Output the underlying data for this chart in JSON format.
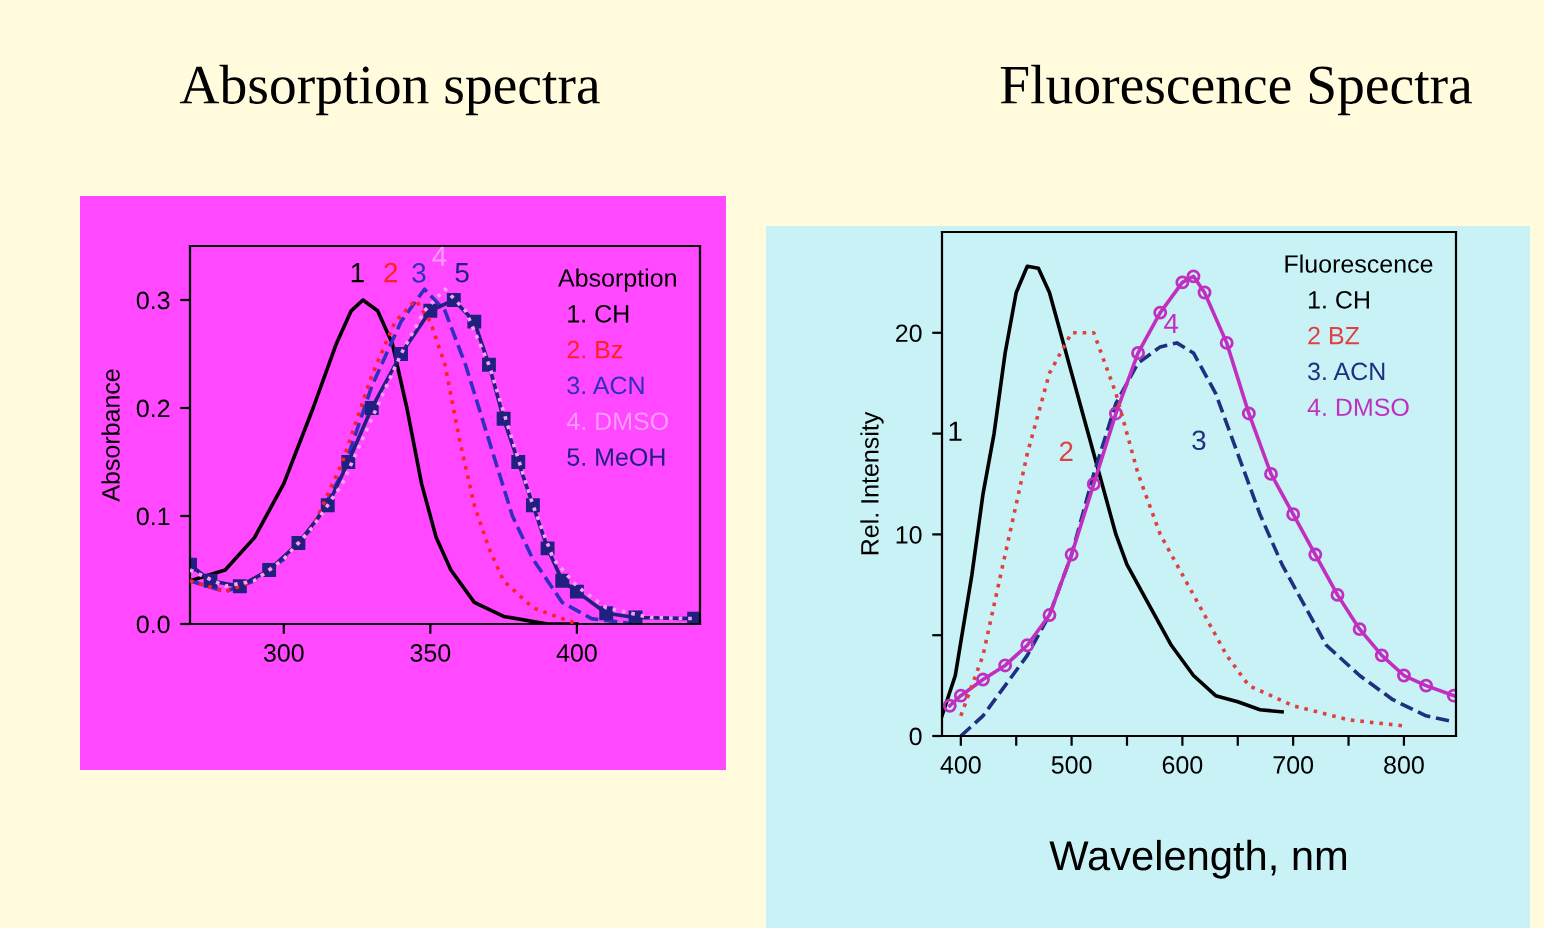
{
  "chart_data": [
    {
      "type": "line",
      "title": "Absorption spectra",
      "ylabel": "Absorbance",
      "legend_title": "Absorption",
      "legend": "top right",
      "grid": false,
      "xlim": [
        268,
        442
      ],
      "xticks": [
        300,
        350,
        400
      ],
      "ylim": [
        0,
        0.35
      ],
      "yticks": [
        {
          "value": 0,
          "label": "0.0"
        },
        {
          "value": 0.1,
          "label": "0.1"
        },
        {
          "value": 0.2,
          "label": "0.2"
        },
        {
          "value": 0.3,
          "label": "0.3"
        }
      ],
      "series": [
        {
          "name": "1. CH",
          "color": "#000000",
          "line_style": "solid",
          "marker": "none",
          "x": [
            268,
            280,
            290,
            300,
            310,
            318,
            323,
            327,
            332,
            337,
            342,
            347,
            352,
            357,
            365,
            375,
            390,
            400
          ],
          "values": [
            0.04,
            0.05,
            0.08,
            0.13,
            0.2,
            0.26,
            0.29,
            0.3,
            0.29,
            0.26,
            0.2,
            0.13,
            0.08,
            0.05,
            0.02,
            0.007,
            0.0,
            0.0
          ]
        },
        {
          "name": "2. Bz",
          "color": "#ff2020",
          "line_style": "dotted",
          "marker": "none",
          "x": [
            268,
            280,
            290,
            300,
            310,
            320,
            330,
            338,
            345,
            350,
            355,
            360,
            365,
            370,
            375,
            385,
            400
          ],
          "values": [
            0.04,
            0.03,
            0.04,
            0.06,
            0.09,
            0.15,
            0.23,
            0.28,
            0.3,
            0.28,
            0.24,
            0.17,
            0.11,
            0.07,
            0.04,
            0.015,
            0.0
          ]
        },
        {
          "name": "3. ACN",
          "color": "#3030c0",
          "line_style": "dashed",
          "marker": "none",
          "x": [
            268,
            280,
            290,
            300,
            310,
            320,
            330,
            340,
            348,
            355,
            362,
            370,
            378,
            385,
            395,
            405,
            420
          ],
          "values": [
            0.04,
            0.03,
            0.04,
            0.06,
            0.09,
            0.14,
            0.22,
            0.28,
            0.31,
            0.29,
            0.24,
            0.17,
            0.1,
            0.06,
            0.02,
            0.005,
            0.0
          ]
        },
        {
          "name": "4. DMSO",
          "color": "#ff9cff",
          "line_style": "dotted",
          "marker": "none",
          "x": [
            268,
            280,
            290,
            300,
            310,
            320,
            330,
            340,
            348,
            355,
            362,
            370,
            378,
            385,
            392,
            400,
            410,
            425,
            440
          ],
          "values": [
            0.05,
            0.035,
            0.04,
            0.06,
            0.09,
            0.13,
            0.19,
            0.25,
            0.29,
            0.31,
            0.29,
            0.24,
            0.17,
            0.11,
            0.06,
            0.035,
            0.015,
            0.006,
            0.005
          ]
        },
        {
          "name": "5. MeOH",
          "color": "#202080",
          "line_style": "solid",
          "marker": "square",
          "x": [
            268,
            275,
            285,
            295,
            305,
            315,
            322,
            330,
            340,
            350,
            358,
            365,
            370,
            375,
            380,
            385,
            390,
            395,
            400,
            410,
            420,
            440
          ],
          "values": [
            0.055,
            0.04,
            0.035,
            0.05,
            0.075,
            0.11,
            0.15,
            0.2,
            0.25,
            0.29,
            0.3,
            0.28,
            0.24,
            0.19,
            0.15,
            0.11,
            0.07,
            0.04,
            0.03,
            0.01,
            0.006,
            0.005
          ]
        }
      ],
      "annotations": [
        {
          "text": "1",
          "x": 327,
          "y": 0.3
        },
        {
          "text": "2",
          "x": 345,
          "y": 0.3
        },
        {
          "text": "3",
          "x": 348,
          "y": 0.31
        },
        {
          "text": "4",
          "x": 355,
          "y": 0.31
        },
        {
          "text": "5",
          "x": 358,
          "y": 0.3
        }
      ]
    },
    {
      "type": "line",
      "title": "Fluorescence Spectra",
      "xlabel": "Wavelength, nm",
      "ylabel": "Rel. Intensity",
      "legend_title": "Fluorescence",
      "legend": "top right",
      "grid": false,
      "xlim": [
        383,
        847
      ],
      "xticks": [
        400,
        {
          "value": 450,
          "label": null
        },
        500,
        {
          "value": 550,
          "label": null
        },
        600,
        {
          "value": 650,
          "label": null
        },
        700,
        {
          "value": 750,
          "label": null
        },
        800
      ],
      "ylim": [
        0,
        25
      ],
      "yticks": [
        0,
        {
          "value": 5,
          "label": null
        },
        10,
        {
          "value": 15,
          "label": null
        },
        20
      ],
      "series": [
        {
          "name": "1. CH",
          "color": "#000000",
          "line_style": "solid",
          "marker": "none",
          "x": [
            383,
            395,
            410,
            420,
            430,
            440,
            450,
            460,
            470,
            480,
            490,
            500,
            510,
            520,
            530,
            540,
            550,
            560,
            575,
            590,
            610,
            630,
            650,
            670,
            690
          ],
          "values": [
            1,
            3,
            8,
            12,
            15,
            19,
            22,
            23.3,
            23.2,
            22,
            20,
            18,
            16,
            14,
            12,
            10,
            8.5,
            7.5,
            6,
            4.5,
            3,
            2,
            1.7,
            1.3,
            1.2
          ]
        },
        {
          "name": "2 BZ",
          "color": "#e04040",
          "line_style": "dotted",
          "marker": "none",
          "x": [
            400,
            420,
            440,
            460,
            480,
            500,
            520,
            540,
            560,
            580,
            600,
            620,
            640,
            660,
            700,
            750,
            800
          ],
          "values": [
            1,
            4,
            9,
            14,
            18,
            20,
            20,
            17,
            13,
            10,
            8,
            6,
            4,
            2.5,
            1.5,
            0.8,
            0.5
          ]
        },
        {
          "name": "3. ACN",
          "color": "#203080",
          "line_style": "dashed",
          "marker": "none",
          "x": [
            400,
            420,
            440,
            460,
            480,
            500,
            520,
            540,
            560,
            580,
            595,
            610,
            630,
            650,
            670,
            690,
            710,
            730,
            760,
            790,
            820,
            845
          ],
          "values": [
            0,
            1,
            2.5,
            4,
            6,
            9,
            13,
            16.5,
            18.5,
            19.3,
            19.5,
            19,
            17,
            14,
            11,
            8.5,
            6.5,
            4.5,
            3,
            1.8,
            1,
            0.7
          ]
        },
        {
          "name": "4. DMSO",
          "color": "#c030c0",
          "line_style": "solid",
          "marker": "circle",
          "x": [
            390,
            400,
            420,
            440,
            460,
            480,
            500,
            520,
            540,
            560,
            580,
            600,
            610,
            620,
            640,
            660,
            680,
            700,
            720,
            740,
            760,
            780,
            800,
            820,
            845
          ],
          "values": [
            1.5,
            2,
            2.8,
            3.5,
            4.5,
            6,
            9,
            12.5,
            16,
            19,
            21,
            22.5,
            22.8,
            22,
            19.5,
            16,
            13,
            11,
            9,
            7,
            5.3,
            4,
            3,
            2.5,
            2
          ]
        }
      ],
      "annotations": [
        {
          "text": "1",
          "x": 430,
          "y": 15
        },
        {
          "text": "2",
          "x": 460,
          "y": 14
        },
        {
          "text": "3",
          "x": 650,
          "y": 14
        },
        {
          "text": "4",
          "x": 620,
          "y": 22
        }
      ]
    }
  ]
}
